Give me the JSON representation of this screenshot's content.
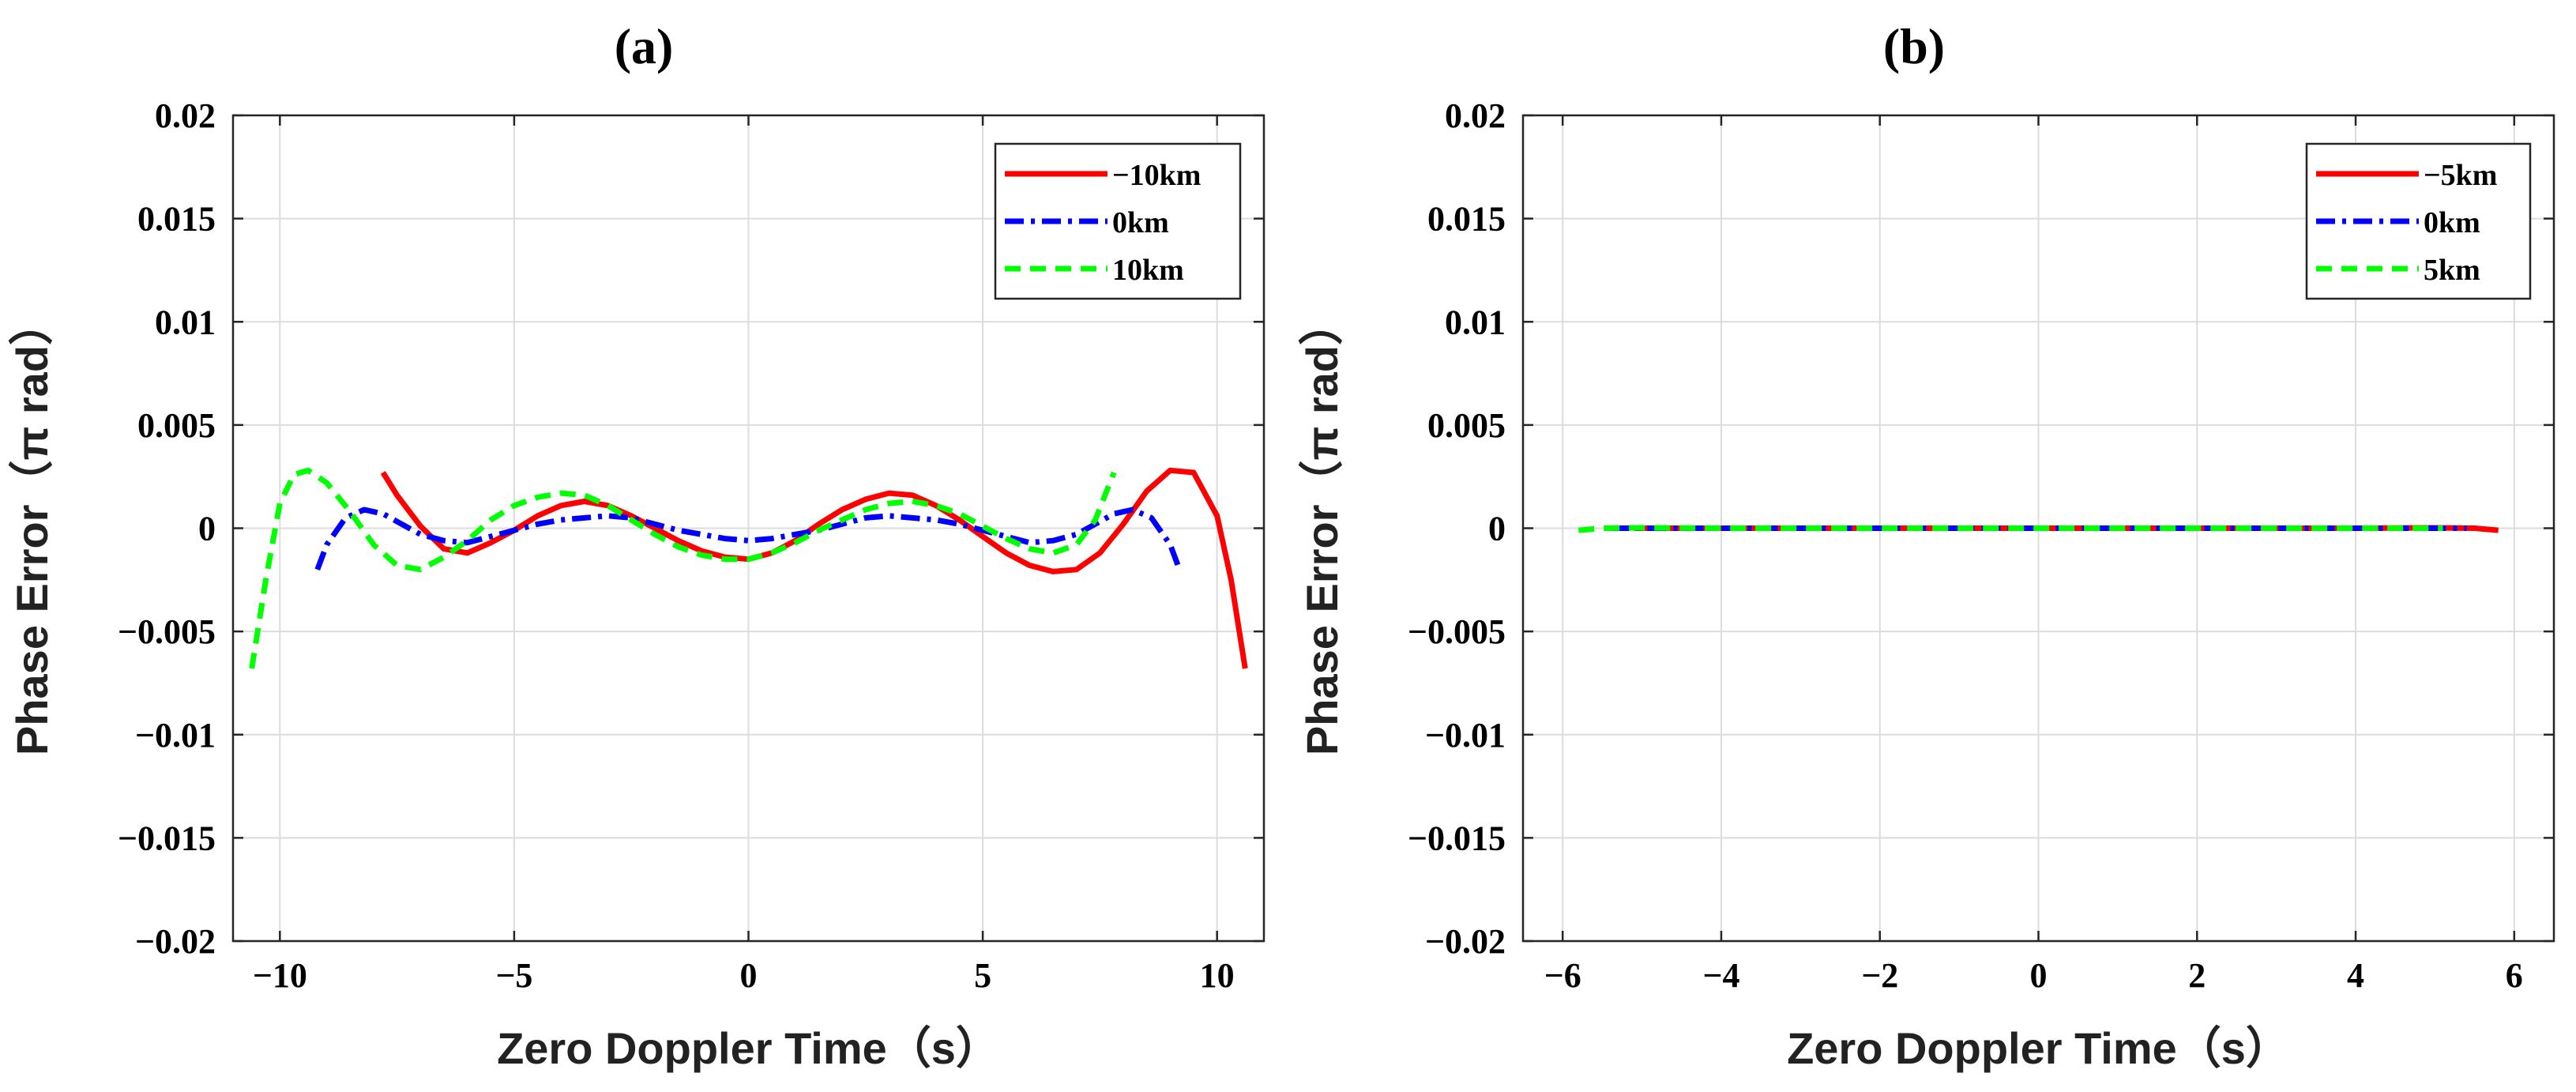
{
  "chart_data": [
    {
      "type": "line",
      "title": "(a)",
      "xlabel": "Zero Doppler Time（s）",
      "ylabel": "Phase Error（π rad）",
      "xlim": [
        -11,
        11
      ],
      "ylim": [
        -0.02,
        0.02
      ],
      "xticks": [
        -10,
        -5,
        0,
        5,
        10
      ],
      "xtick_labels": [
        "−10",
        "−5",
        "0",
        "5",
        "10"
      ],
      "yticks": [
        0.02,
        0.015,
        0.01,
        0.005,
        0,
        -0.005,
        -0.01,
        -0.015,
        -0.02
      ],
      "ytick_labels": [
        "0.02",
        "0.015",
        "0.01",
        "0.005",
        "0",
        "−0.005",
        "−0.01",
        "−0.015",
        "−0.02"
      ],
      "grid": true,
      "legend_position": "top-right",
      "series": [
        {
          "name": "−10km",
          "color": "#ff0000",
          "style": "solid",
          "x": [
            -7.8,
            -7.5,
            -7.0,
            -6.5,
            -6.0,
            -5.5,
            -5.0,
            -4.5,
            -4.0,
            -3.5,
            -3.0,
            -2.5,
            -2.0,
            -1.5,
            -1.0,
            -0.5,
            0.0,
            0.5,
            1.0,
            1.5,
            2.0,
            2.5,
            3.0,
            3.5,
            4.0,
            4.5,
            5.0,
            5.5,
            6.0,
            6.5,
            7.0,
            7.5,
            8.0,
            8.5,
            9.0,
            9.5,
            10.0,
            10.3,
            10.6
          ],
          "y": [
            0.0027,
            0.0016,
            0.0001,
            -0.001,
            -0.0012,
            -0.0007,
            -0.0001,
            0.0006,
            0.0011,
            0.0013,
            0.0011,
            0.0006,
            0.0,
            -0.0006,
            -0.0011,
            -0.0014,
            -0.0015,
            -0.0012,
            -0.0006,
            0.0002,
            0.0009,
            0.0014,
            0.0017,
            0.0016,
            0.0011,
            0.0004,
            -0.0004,
            -0.0012,
            -0.0018,
            -0.0021,
            -0.002,
            -0.0012,
            0.0002,
            0.0018,
            0.0028,
            0.0027,
            0.0006,
            -0.0025,
            -0.0068
          ]
        },
        {
          "name": "0km",
          "color": "#0000ff",
          "style": "dash-dot",
          "x": [
            -9.2,
            -9.0,
            -8.6,
            -8.2,
            -7.8,
            -7.4,
            -7.0,
            -6.5,
            -6.0,
            -5.5,
            -5.0,
            -4.5,
            -4.0,
            -3.5,
            -3.0,
            -2.5,
            -2.0,
            -1.5,
            -1.0,
            -0.5,
            0.0,
            0.5,
            1.0,
            1.5,
            2.0,
            2.5,
            3.0,
            3.5,
            4.0,
            4.5,
            5.0,
            5.5,
            6.0,
            6.5,
            7.0,
            7.4,
            7.8,
            8.2,
            8.6,
            9.0,
            9.2
          ],
          "y": [
            -0.002,
            -0.0008,
            0.0005,
            0.0009,
            0.0007,
            0.0002,
            -0.0003,
            -0.0006,
            -0.0007,
            -0.0004,
            -0.0001,
            0.0002,
            0.0004,
            0.0005,
            0.0006,
            0.0005,
            0.0002,
            -0.0001,
            -0.0003,
            -0.0005,
            -0.0006,
            -0.0005,
            -0.0003,
            -0.0001,
            0.0002,
            0.0005,
            0.0006,
            0.0005,
            0.0004,
            0.0002,
            -0.0001,
            -0.0004,
            -0.0007,
            -0.0006,
            -0.0003,
            0.0002,
            0.0007,
            0.0009,
            0.0005,
            -0.0008,
            -0.002
          ]
        },
        {
          "name": "10km",
          "color": "#00ff00",
          "style": "dashed",
          "x": [
            -10.6,
            -10.3,
            -10.0,
            -9.7,
            -9.4,
            -9.0,
            -8.5,
            -8.0,
            -7.5,
            -7.0,
            -6.5,
            -6.0,
            -5.5,
            -5.0,
            -4.5,
            -4.0,
            -3.5,
            -3.0,
            -2.5,
            -2.0,
            -1.5,
            -1.0,
            -0.5,
            0.0,
            0.5,
            1.0,
            1.5,
            2.0,
            2.5,
            3.0,
            3.5,
            4.0,
            4.5,
            5.0,
            5.5,
            6.0,
            6.5,
            7.0,
            7.4,
            7.8
          ],
          "y": [
            -0.0068,
            -0.0025,
            0.0012,
            0.0026,
            0.0028,
            0.0022,
            0.0008,
            -0.0008,
            -0.0018,
            -0.002,
            -0.0014,
            -0.0006,
            0.0004,
            0.0011,
            0.0015,
            0.0017,
            0.0016,
            0.0011,
            0.0004,
            -0.0003,
            -0.0009,
            -0.0013,
            -0.0015,
            -0.0015,
            -0.0012,
            -0.0007,
            -0.0001,
            0.0004,
            0.0009,
            0.0012,
            0.0013,
            0.0011,
            0.0007,
            0.0001,
            -0.0005,
            -0.001,
            -0.0012,
            -0.0008,
            0.0004,
            0.0027
          ]
        }
      ]
    },
    {
      "type": "line",
      "title": "(b)",
      "xlabel": "Zero Doppler Time（s）",
      "ylabel": "Phase Error（π rad）",
      "xlim": [
        -6.5,
        6.5
      ],
      "ylim": [
        -0.02,
        0.02
      ],
      "xticks": [
        -6,
        -4,
        -2,
        0,
        2,
        4,
        6
      ],
      "xtick_labels": [
        "−6",
        "−4",
        "−2",
        "0",
        "2",
        "4",
        "6"
      ],
      "yticks": [
        0.02,
        0.015,
        0.01,
        0.005,
        0,
        -0.005,
        -0.01,
        -0.015,
        -0.02
      ],
      "ytick_labels": [
        "0.02",
        "0.015",
        "0.01",
        "0.005",
        "0",
        "−0.005",
        "−0.01",
        "−0.015",
        "−0.02"
      ],
      "grid": true,
      "legend_position": "top-right",
      "series": [
        {
          "name": "−5km",
          "color": "#ff0000",
          "style": "solid",
          "x": [
            -5.1,
            -4.0,
            -2.0,
            0.0,
            2.0,
            4.0,
            5.0,
            5.5,
            5.8
          ],
          "y": [
            0.0,
            0.0,
            0.0,
            0.0,
            0.0,
            0.0,
            2e-05,
            0.0,
            -0.0001
          ]
        },
        {
          "name": "0km",
          "color": "#0000ff",
          "style": "dash-dot",
          "x": [
            -5.4,
            -4.0,
            -2.0,
            0.0,
            2.0,
            4.0,
            5.4
          ],
          "y": [
            0.0,
            0.0,
            0.0,
            0.0,
            0.0,
            0.0,
            0.0
          ]
        },
        {
          "name": "5km",
          "color": "#00ff00",
          "style": "dashed",
          "x": [
            -5.8,
            -5.5,
            -5.0,
            -4.0,
            -2.0,
            0.0,
            2.0,
            4.0,
            5.1
          ],
          "y": [
            -0.0001,
            0.0,
            2e-05,
            0.0,
            0.0,
            0.0,
            0.0,
            0.0,
            0.0
          ]
        }
      ]
    }
  ]
}
